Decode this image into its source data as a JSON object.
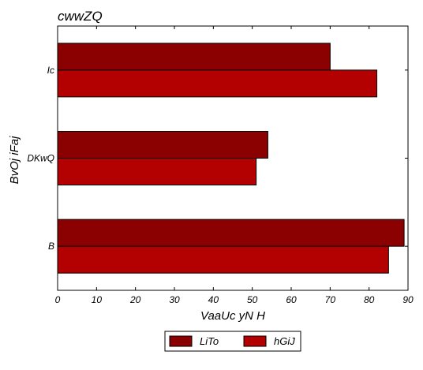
{
  "chart_data": {
    "type": "bar",
    "orientation": "horizontal",
    "title": "cwwZQ",
    "xlabel": "VaaUc yN  H",
    "ylabel": "BvOj iFaj",
    "categories": [
      "B",
      "DKwQ",
      "Ic"
    ],
    "series": [
      {
        "name": "LiTo",
        "values": [
          89,
          54,
          70
        ],
        "color": "#8b0000"
      },
      {
        "name": "hGiJ",
        "values": [
          85,
          51,
          82
        ],
        "color": "#b30000"
      }
    ],
    "xlim": [
      0,
      90
    ],
    "xticks": [
      "0",
      "10",
      "20",
      "30",
      "40",
      "50",
      "60",
      "70",
      "80",
      "90"
    ],
    "grid": false,
    "legend_position": "bottom-center"
  }
}
